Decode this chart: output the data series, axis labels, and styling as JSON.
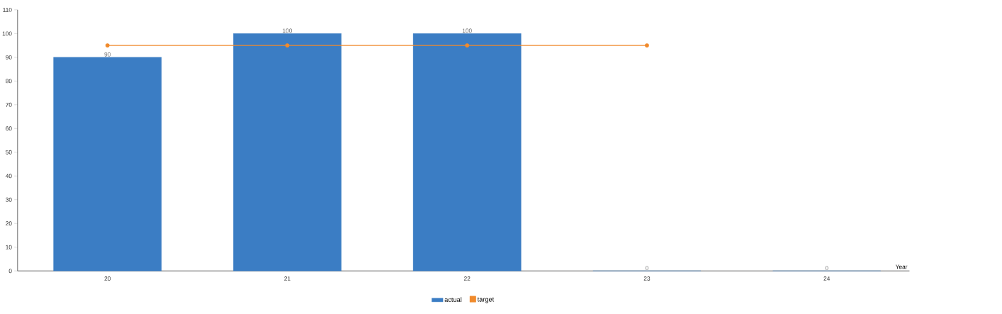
{
  "chart_data": {
    "type": "bar",
    "xlabel": "Year",
    "categories": [
      "20",
      "21",
      "22",
      "23",
      "24"
    ],
    "series": [
      {
        "name": "actual",
        "color": "#3b7dc4",
        "values": [
          90,
          100,
          100,
          0,
          0
        ],
        "value_labels": [
          "90",
          "100",
          "100",
          "0",
          "0"
        ]
      },
      {
        "name": "target",
        "type": "line",
        "color": "#f08a2c",
        "marker": "circle",
        "values": [
          95,
          95,
          95,
          95,
          null
        ]
      }
    ],
    "ylim": [
      0,
      110
    ],
    "yticks": [
      0,
      10,
      20,
      30,
      40,
      50,
      60,
      70,
      80,
      90,
      100,
      110
    ],
    "legend": "bottom",
    "grid": false
  }
}
